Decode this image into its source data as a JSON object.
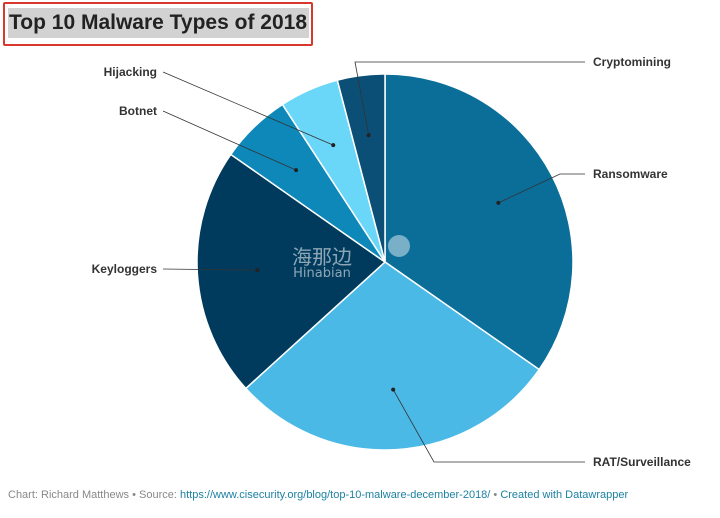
{
  "chart_data": {
    "type": "pie",
    "title": "Top 10 Malware Types of 2018",
    "categories": [
      "Ransomware",
      "RAT/Surveillance",
      "Keyloggers",
      "Botnet",
      "Hijacking",
      "Cryptomining"
    ],
    "values": [
      34,
      28,
      21,
      6,
      5,
      4
    ],
    "unit": "%",
    "colors": [
      "#0b6e99",
      "#4ab9e6",
      "#003a5d",
      "#0e88b8",
      "#6ad6f8",
      "#0c4f76"
    ],
    "start_angle_deg": 0,
    "direction": "clockwise"
  },
  "watermark": {
    "cn": "海那边",
    "en": "Hinabian"
  },
  "footer": {
    "prefix": "Chart: Richard Matthews • Source: ",
    "source_link": "https://www.cisecurity.org/blog/top-10-malware-december-2018/",
    "separator": " • ",
    "created_link": "Created with Datawrapper"
  }
}
